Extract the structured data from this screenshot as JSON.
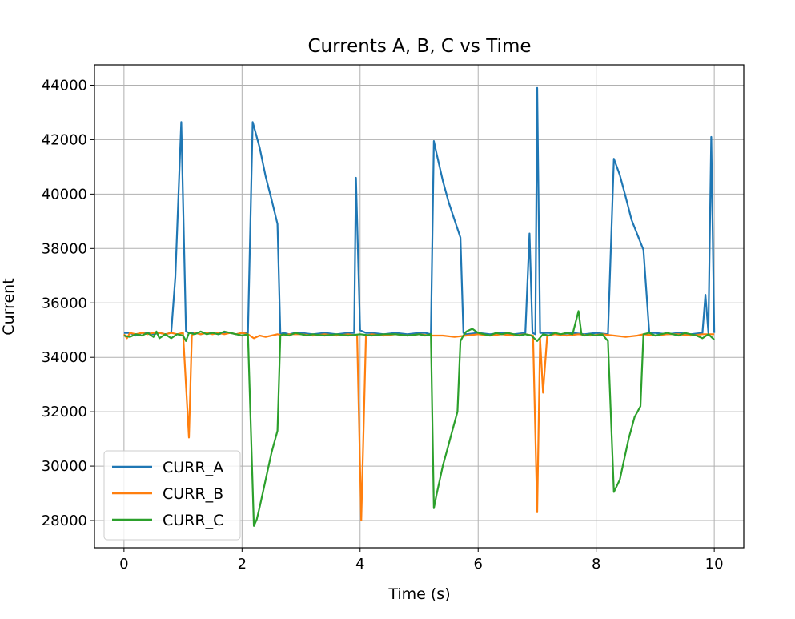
{
  "chart_data": {
    "type": "line",
    "title": "Currents A, B, C vs Time",
    "xlabel": "Time (s)",
    "ylabel": "Current",
    "xlim": [
      -0.5,
      10.5
    ],
    "ylim": [
      27000,
      44750
    ],
    "xticks": [
      0,
      2,
      4,
      6,
      8,
      10
    ],
    "yticks": [
      28000,
      30000,
      32000,
      34000,
      36000,
      38000,
      40000,
      42000,
      44000
    ],
    "grid": true,
    "legend_position": "lower-left",
    "series": [
      {
        "name": "CURR_A",
        "color": "#1f77b4",
        "x": [
          0.0,
          0.1,
          0.2,
          0.3,
          0.4,
          0.5,
          0.6,
          0.7,
          0.8,
          0.87,
          0.97,
          1.05,
          1.1,
          1.2,
          1.3,
          1.4,
          1.5,
          1.6,
          1.7,
          1.8,
          1.9,
          2.0,
          2.1,
          2.18,
          2.3,
          2.4,
          2.5,
          2.6,
          2.65,
          2.7,
          2.8,
          2.9,
          3.0,
          3.2,
          3.4,
          3.6,
          3.8,
          3.9,
          3.93,
          4.0,
          4.1,
          4.2,
          4.4,
          4.6,
          4.8,
          5.0,
          5.1,
          5.2,
          5.25,
          5.3,
          5.4,
          5.5,
          5.6,
          5.7,
          5.75,
          5.8,
          6.0,
          6.2,
          6.4,
          6.6,
          6.8,
          6.87,
          6.92,
          6.97,
          7.0,
          7.05,
          7.2,
          7.4,
          7.6,
          7.8,
          8.0,
          8.2,
          8.3,
          8.4,
          8.5,
          8.6,
          8.7,
          8.8,
          8.9,
          9.0,
          9.2,
          9.4,
          9.6,
          9.8,
          9.85,
          9.9,
          9.95,
          10.0
        ],
        "values": [
          34900,
          34900,
          34800,
          34900,
          34900,
          34850,
          34900,
          34850,
          34900,
          36950,
          42650,
          34950,
          34900,
          34900,
          34850,
          34900,
          34900,
          34850,
          34900,
          34900,
          34850,
          34900,
          34900,
          42650,
          41700,
          40650,
          39800,
          38900,
          34850,
          34900,
          34850,
          34900,
          34900,
          34850,
          34900,
          34850,
          34900,
          34900,
          40600,
          35000,
          34900,
          34900,
          34850,
          34900,
          34850,
          34900,
          34900,
          34850,
          41950,
          41450,
          40500,
          39700,
          39050,
          38400,
          34900,
          34850,
          34900,
          34850,
          34900,
          34850,
          34900,
          38550,
          34900,
          34850,
          43900,
          34900,
          34900,
          34850,
          34900,
          34850,
          34900,
          34850,
          41300,
          40700,
          39900,
          39050,
          38500,
          37950,
          34900,
          34900,
          34850,
          34900,
          34850,
          34900,
          36300,
          34900,
          42100,
          34900
        ]
      },
      {
        "name": "CURR_B",
        "color": "#ff7f0e",
        "x": [
          0.0,
          0.05,
          0.1,
          0.2,
          0.3,
          0.4,
          0.5,
          0.6,
          0.7,
          0.8,
          0.9,
          1.0,
          1.1,
          1.15,
          1.2,
          1.3,
          1.4,
          1.5,
          1.6,
          1.7,
          1.8,
          1.9,
          2.0,
          2.1,
          2.2,
          2.3,
          2.4,
          2.5,
          2.6,
          2.7,
          2.8,
          3.0,
          3.2,
          3.4,
          3.6,
          3.8,
          3.95,
          4.02,
          4.1,
          4.2,
          4.4,
          4.6,
          4.8,
          5.0,
          5.2,
          5.4,
          5.6,
          5.8,
          6.0,
          6.2,
          6.4,
          6.6,
          6.8,
          6.93,
          7.0,
          7.05,
          7.1,
          7.17,
          7.3,
          7.5,
          7.7,
          7.9,
          8.1,
          8.3,
          8.5,
          8.7,
          8.8,
          9.0,
          9.2,
          9.4,
          9.6,
          9.8,
          10.0
        ],
        "values": [
          34850,
          34700,
          34900,
          34850,
          34900,
          34850,
          34900,
          34900,
          34850,
          34900,
          34850,
          34900,
          31050,
          34800,
          34900,
          34850,
          34900,
          34850,
          34900,
          34850,
          34900,
          34850,
          34900,
          34850,
          34700,
          34800,
          34750,
          34800,
          34850,
          34800,
          34850,
          34850,
          34800,
          34850,
          34800,
          34850,
          34800,
          28000,
          34800,
          34850,
          34800,
          34850,
          34800,
          34850,
          34800,
          34800,
          34750,
          34800,
          34850,
          34800,
          34850,
          34800,
          34850,
          34800,
          28300,
          34700,
          32700,
          34800,
          34850,
          34800,
          34850,
          34800,
          34850,
          34800,
          34750,
          34800,
          34850,
          34800,
          34850,
          34850,
          34800,
          34850,
          34850
        ]
      },
      {
        "name": "CURR_C",
        "color": "#2ca02c",
        "x": [
          0.0,
          0.1,
          0.2,
          0.3,
          0.4,
          0.5,
          0.55,
          0.6,
          0.7,
          0.8,
          0.9,
          1.0,
          1.05,
          1.1,
          1.2,
          1.3,
          1.4,
          1.5,
          1.6,
          1.7,
          1.8,
          1.9,
          2.0,
          2.1,
          2.2,
          2.25,
          2.3,
          2.35,
          2.4,
          2.45,
          2.5,
          2.55,
          2.6,
          2.65,
          2.7,
          2.8,
          2.9,
          3.0,
          3.1,
          3.2,
          3.4,
          3.6,
          3.8,
          4.0,
          4.2,
          4.4,
          4.6,
          4.8,
          5.0,
          5.1,
          5.2,
          5.25,
          5.3,
          5.4,
          5.5,
          5.55,
          5.6,
          5.65,
          5.7,
          5.75,
          5.8,
          5.9,
          6.0,
          6.1,
          6.2,
          6.3,
          6.4,
          6.5,
          6.6,
          6.7,
          6.8,
          6.9,
          7.0,
          7.1,
          7.2,
          7.3,
          7.4,
          7.5,
          7.6,
          7.7,
          7.75,
          7.8,
          7.9,
          8.0,
          8.1,
          8.2,
          8.3,
          8.4,
          8.5,
          8.55,
          8.6,
          8.65,
          8.7,
          8.75,
          8.8,
          8.9,
          9.0,
          9.1,
          9.2,
          9.3,
          9.4,
          9.5,
          9.6,
          9.7,
          9.8,
          9.9,
          10.0
        ],
        "values": [
          34800,
          34750,
          34850,
          34800,
          34900,
          34750,
          34950,
          34700,
          34850,
          34700,
          34850,
          34800,
          34600,
          34900,
          34850,
          34950,
          34850,
          34900,
          34850,
          34950,
          34900,
          34850,
          34800,
          34850,
          27800,
          28050,
          28500,
          29000,
          29500,
          30000,
          30500,
          30900,
          31300,
          34800,
          34850,
          34800,
          34900,
          34850,
          34800,
          34850,
          34800,
          34850,
          34800,
          34850,
          34800,
          34850,
          34850,
          34800,
          34850,
          34800,
          34850,
          28450,
          29000,
          30000,
          30800,
          31200,
          31600,
          32000,
          34600,
          34800,
          34950,
          35050,
          34900,
          34850,
          34800,
          34900,
          34850,
          34900,
          34850,
          34800,
          34850,
          34800,
          34600,
          34850,
          34800,
          34900,
          34850,
          34900,
          34850,
          35700,
          34850,
          34800,
          34850,
          34800,
          34850,
          34600,
          29050,
          29500,
          30500,
          31000,
          31400,
          31800,
          32000,
          32200,
          34850,
          34900,
          34800,
          34850,
          34900,
          34850,
          34800,
          34900,
          34850,
          34800,
          34700,
          34850,
          34650
        ]
      }
    ]
  }
}
